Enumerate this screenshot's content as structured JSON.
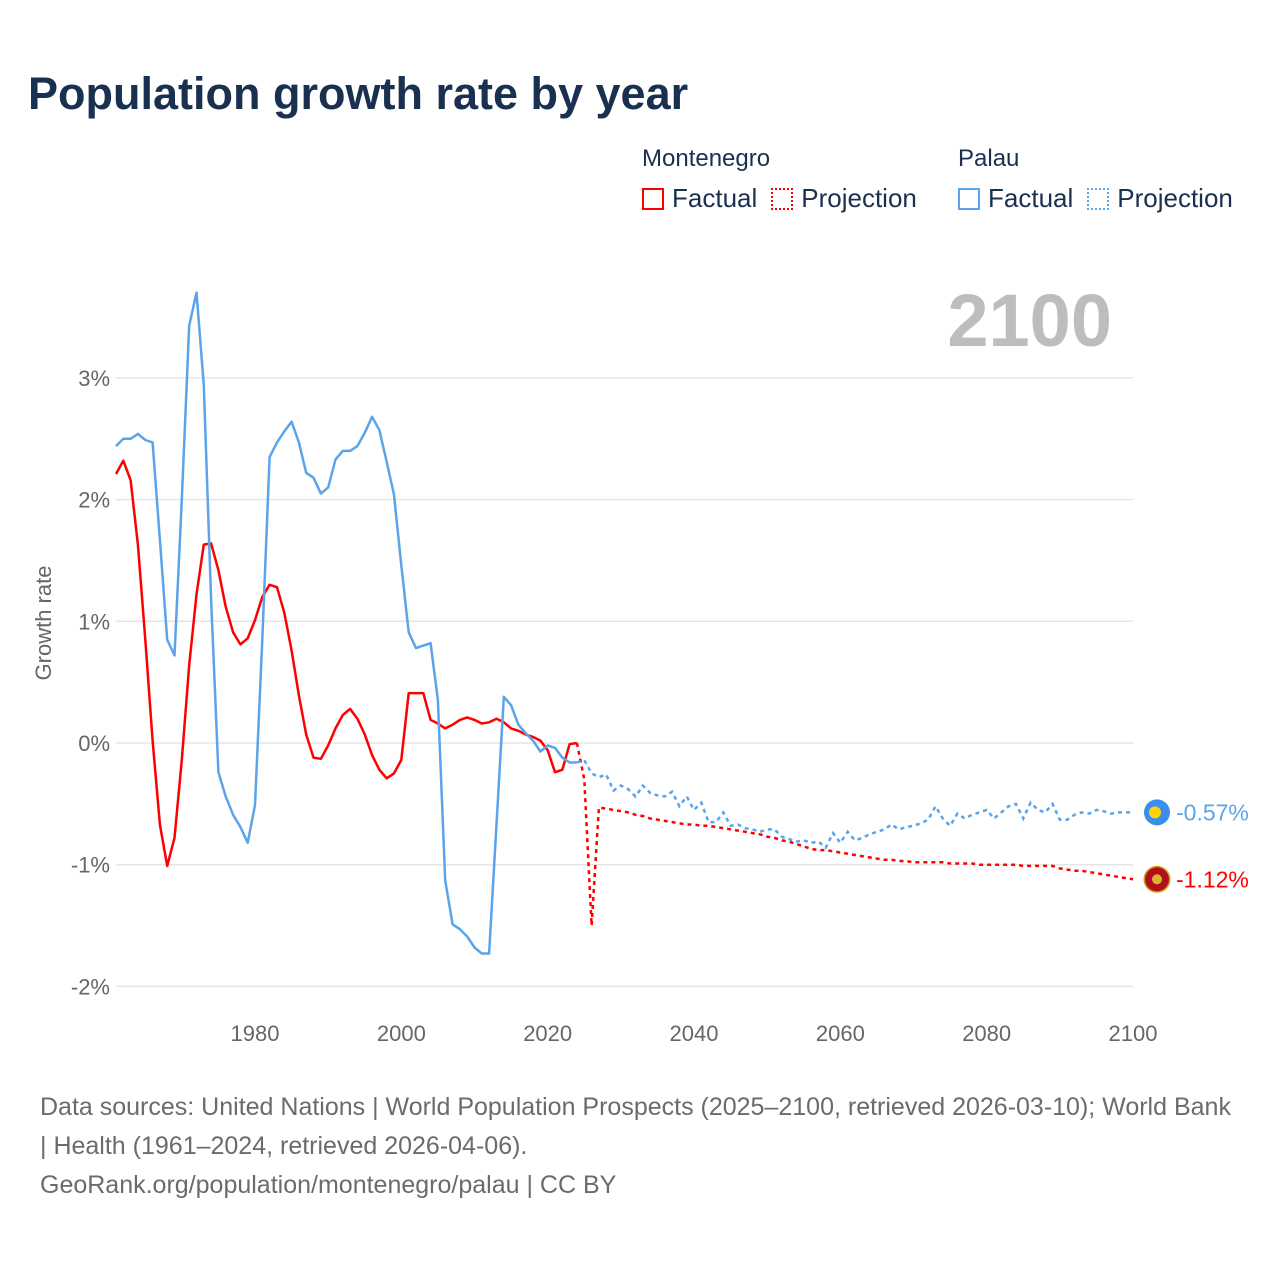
{
  "title": "Population growth rate by year",
  "current_year_label": "2100",
  "legend": {
    "groups": [
      {
        "country": "Montenegro",
        "color": "#ff0000",
        "factual": "Factual",
        "projection": "Projection"
      },
      {
        "country": "Palau",
        "color": "#5ba4ea",
        "factual": "Factual",
        "projection": "Projection"
      }
    ]
  },
  "footer": {
    "sources": "Data sources: United Nations | World Population Prospects (2025–2100, retrieved 2026-03-10); World Bank | Health (1961–2024, retrieved 2026-04-06).",
    "credit": "GeoRank.org/population/montenegro/palau | CC BY"
  },
  "chart_data": {
    "type": "line",
    "title": "Population growth rate by year",
    "xlabel": "",
    "ylabel": "Growth rate",
    "xlim": [
      1961,
      2100
    ],
    "ylim": [
      -2.2,
      3.8
    ],
    "x_ticks": [
      1980,
      2000,
      2020,
      2040,
      2060,
      2080,
      2100
    ],
    "x_tick_labels": [
      "1980",
      "2000",
      "2020",
      "2040",
      "2060",
      "2080",
      "2100"
    ],
    "y_ticks": [
      -2,
      -1,
      0,
      1,
      2,
      3
    ],
    "y_tick_labels": [
      "-2%",
      "-1%",
      "0%",
      "1%",
      "2%",
      "3%"
    ],
    "grid": true,
    "legend_position": "top-right",
    "series": [
      {
        "name": "Montenegro",
        "color": "#ff0000",
        "end_label": "-1.12%",
        "flag": "montenegro-flag",
        "factual_start": 1961,
        "factual": [
          2.21,
          2.32,
          2.16,
          1.63,
          0.85,
          0.02,
          -0.67,
          -1.01,
          -0.78,
          -0.14,
          0.64,
          1.22,
          1.63,
          1.64,
          1.42,
          1.12,
          0.91,
          0.81,
          0.86,
          1.01,
          1.2,
          1.3,
          1.28,
          1.07,
          0.76,
          0.39,
          0.07,
          -0.12,
          -0.13,
          -0.02,
          0.12,
          0.23,
          0.28,
          0.2,
          0.07,
          -0.1,
          -0.22,
          -0.29,
          -0.25,
          -0.14,
          0.41,
          0.41,
          0.41,
          0.19,
          0.16,
          0.12,
          0.15,
          0.19,
          0.21,
          0.19,
          0.16,
          0.17,
          0.2,
          0.17,
          0.12,
          0.1,
          0.07,
          0.05,
          0.02,
          -0.06,
          -0.24,
          -0.22,
          -0.01,
          0.0
        ],
        "projection_start": 2024,
        "projection": [
          0.0,
          -0.3,
          -1.5,
          -0.53,
          -0.54,
          -0.55,
          -0.56,
          -0.57,
          -0.59,
          -0.6,
          -0.62,
          -0.63,
          -0.64,
          -0.65,
          -0.66,
          -0.67,
          -0.67,
          -0.68,
          -0.68,
          -0.69,
          -0.7,
          -0.71,
          -0.72,
          -0.73,
          -0.74,
          -0.75,
          -0.77,
          -0.78,
          -0.8,
          -0.81,
          -0.83,
          -0.85,
          -0.87,
          -0.88,
          -0.88,
          -0.89,
          -0.9,
          -0.91,
          -0.92,
          -0.93,
          -0.94,
          -0.95,
          -0.96,
          -0.96,
          -0.97,
          -0.97,
          -0.98,
          -0.98,
          -0.98,
          -0.98,
          -0.98,
          -0.99,
          -0.99,
          -0.99,
          -0.99,
          -1.0,
          -1.0,
          -1.0,
          -1.0,
          -1.0,
          -1.0,
          -1.01,
          -1.01,
          -1.01,
          -1.01,
          -1.01,
          -1.03,
          -1.04,
          -1.05,
          -1.05,
          -1.06,
          -1.07,
          -1.08,
          -1.09,
          -1.1,
          -1.11,
          -1.12
        ]
      },
      {
        "name": "Palau",
        "color": "#5ba4ea",
        "end_label": "-0.57%",
        "flag": "palau-flag",
        "factual_start": 1961,
        "factual": [
          2.44,
          2.5,
          2.5,
          2.54,
          2.49,
          2.47,
          1.67,
          0.85,
          0.72,
          2.0,
          3.43,
          3.7,
          2.94,
          1.18,
          -0.24,
          -0.44,
          -0.59,
          -0.69,
          -0.82,
          -0.51,
          0.85,
          2.35,
          2.47,
          2.56,
          2.64,
          2.47,
          2.22,
          2.18,
          2.05,
          2.1,
          2.33,
          2.4,
          2.4,
          2.44,
          2.55,
          2.68,
          2.57,
          2.31,
          2.04,
          1.46,
          0.91,
          0.78,
          0.8,
          0.82,
          0.35,
          -1.13,
          -1.49,
          -1.53,
          -1.59,
          -1.68,
          -1.73,
          -1.73,
          -0.67,
          0.38,
          0.31,
          0.15,
          0.08,
          0.02,
          -0.07,
          -0.02,
          -0.04,
          -0.12,
          -0.16,
          -0.16
        ],
        "projection_start": 2024,
        "projection": [
          -0.16,
          -0.14,
          -0.25,
          -0.28,
          -0.26,
          -0.39,
          -0.35,
          -0.38,
          -0.44,
          -0.35,
          -0.41,
          -0.43,
          -0.44,
          -0.4,
          -0.52,
          -0.44,
          -0.55,
          -0.49,
          -0.65,
          -0.65,
          -0.57,
          -0.68,
          -0.67,
          -0.7,
          -0.71,
          -0.73,
          -0.71,
          -0.71,
          -0.77,
          -0.79,
          -0.81,
          -0.8,
          -0.82,
          -0.81,
          -0.86,
          -0.74,
          -0.82,
          -0.73,
          -0.8,
          -0.78,
          -0.75,
          -0.73,
          -0.71,
          -0.67,
          -0.71,
          -0.69,
          -0.68,
          -0.66,
          -0.63,
          -0.52,
          -0.62,
          -0.68,
          -0.58,
          -0.62,
          -0.59,
          -0.57,
          -0.55,
          -0.62,
          -0.57,
          -0.52,
          -0.5,
          -0.62,
          -0.49,
          -0.55,
          -0.57,
          -0.5,
          -0.63,
          -0.63,
          -0.59,
          -0.57,
          -0.58,
          -0.55,
          -0.56,
          -0.58,
          -0.57,
          -0.57,
          -0.57
        ]
      }
    ]
  }
}
